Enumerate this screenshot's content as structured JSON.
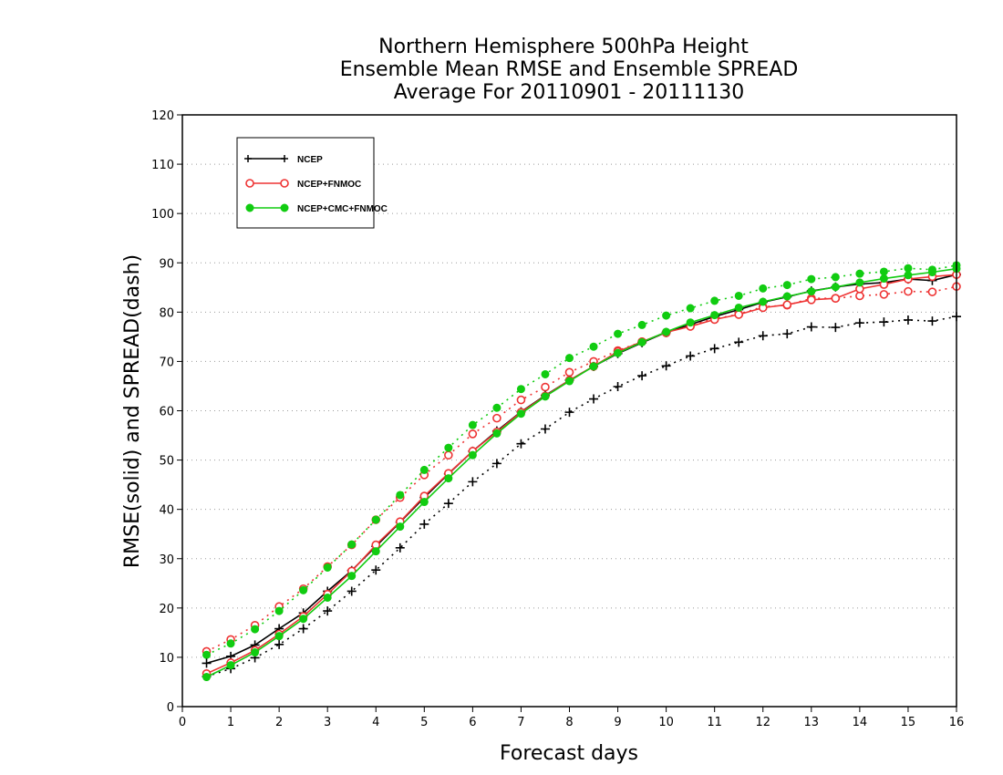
{
  "chart_data": {
    "type": "line",
    "title": [
      "Northern Hemisphere 500hPa Height",
      "Ensemble Mean RMSE and Ensemble SPREAD",
      "Average For 20110901 - 20111130"
    ],
    "xlabel": "Forecast days",
    "ylabel": "RMSE(solid) and SPREAD(dash)",
    "xlim": [
      0,
      16
    ],
    "ylim": [
      0,
      120
    ],
    "xticks": [
      0,
      1,
      2,
      3,
      4,
      5,
      6,
      7,
      8,
      9,
      10,
      11,
      12,
      13,
      14,
      15,
      16
    ],
    "yticks": [
      0,
      10,
      20,
      30,
      40,
      50,
      60,
      70,
      80,
      90,
      100,
      110,
      120
    ],
    "grid": "y-dotted",
    "legend_position": "top-left",
    "x": [
      0.5,
      1,
      1.5,
      2,
      2.5,
      3,
      3.5,
      4,
      4.5,
      5,
      5.5,
      6,
      6.5,
      7,
      7.5,
      8,
      8.5,
      9,
      9.5,
      10,
      10.5,
      11,
      11.5,
      12,
      12.5,
      13,
      13.5,
      14,
      14.5,
      15,
      15.5,
      16
    ],
    "series": [
      {
        "name": "NCEP",
        "color": "#000000",
        "marker": "plus",
        "kind": "rmse",
        "values": [
          8.8,
          10.2,
          12.5,
          15.8,
          19.0,
          23.4,
          27.6,
          32.5,
          37.4,
          42.4,
          47.2,
          51.8,
          55.9,
          59.8,
          63.1,
          66.2,
          69.0,
          71.6,
          73.8,
          75.9,
          77.5,
          79.1,
          80.5,
          82.0,
          83.1,
          84.3,
          85.1,
          85.7,
          86.0,
          86.7,
          86.4,
          87.6
        ]
      },
      {
        "name": "NCEP",
        "color": "#000000",
        "marker": "plus",
        "kind": "spread",
        "values": [
          6.1,
          7.7,
          9.9,
          12.6,
          15.8,
          19.4,
          23.4,
          27.7,
          32.2,
          37.0,
          41.2,
          45.6,
          49.3,
          53.3,
          56.3,
          59.7,
          62.4,
          64.9,
          67.1,
          69.1,
          71.1,
          72.6,
          73.9,
          75.2,
          75.6,
          77.0,
          76.9,
          77.8,
          78.0,
          78.4,
          78.2,
          79.1
        ]
      },
      {
        "name": "NCEP+FNMOC",
        "color": "#ee3333",
        "marker": "circle-open",
        "kind": "rmse",
        "values": [
          6.7,
          8.9,
          11.4,
          14.7,
          18.3,
          22.8,
          27.5,
          32.8,
          37.5,
          42.7,
          47.3,
          51.8,
          55.7,
          59.7,
          63.0,
          66.2,
          69.0,
          72.0,
          74.0,
          75.9,
          77.1,
          78.5,
          79.5,
          80.9,
          81.5,
          82.5,
          82.8,
          84.7,
          85.6,
          86.7,
          87.2,
          87.6
        ]
      },
      {
        "name": "NCEP+FNMOC",
        "color": "#ee3333",
        "marker": "circle-open",
        "kind": "spread",
        "values": [
          11.2,
          13.6,
          16.5,
          20.3,
          23.9,
          28.4,
          32.8,
          37.9,
          42.4,
          47.0,
          51.0,
          55.3,
          58.5,
          62.2,
          64.8,
          67.8,
          70.0,
          72.2,
          74.0,
          75.8,
          77.5,
          78.6,
          79.6,
          81.1,
          81.4,
          82.8,
          82.8,
          83.3,
          83.6,
          84.2,
          84.1,
          85.2
        ]
      },
      {
        "name": "NCEP+CMC+FNMOC",
        "color": "#11cc11",
        "marker": "circle-filled",
        "kind": "rmse",
        "values": [
          6.0,
          8.4,
          11.0,
          14.3,
          17.8,
          22.1,
          26.5,
          31.5,
          36.5,
          41.5,
          46.3,
          51.0,
          55.4,
          59.4,
          62.9,
          66.0,
          69.0,
          71.7,
          73.9,
          76.0,
          77.9,
          79.4,
          80.9,
          82.1,
          83.2,
          84.2,
          85.1,
          86.0,
          86.8,
          87.5,
          88.1,
          88.8
        ]
      },
      {
        "name": "NCEP+CMC+FNMOC",
        "color": "#11cc11",
        "marker": "circle-filled",
        "kind": "spread",
        "values": [
          10.5,
          12.8,
          15.7,
          19.4,
          23.6,
          28.2,
          32.9,
          37.9,
          42.9,
          48.0,
          52.5,
          57.1,
          60.6,
          64.4,
          67.4,
          70.7,
          73.0,
          75.6,
          77.4,
          79.3,
          80.8,
          82.3,
          83.3,
          84.8,
          85.5,
          86.7,
          87.1,
          87.8,
          88.2,
          88.9,
          88.6,
          89.5
        ]
      }
    ],
    "legend": [
      "NCEP",
      "NCEP+FNMOC",
      "NCEP+CMC+FNMOC"
    ]
  }
}
